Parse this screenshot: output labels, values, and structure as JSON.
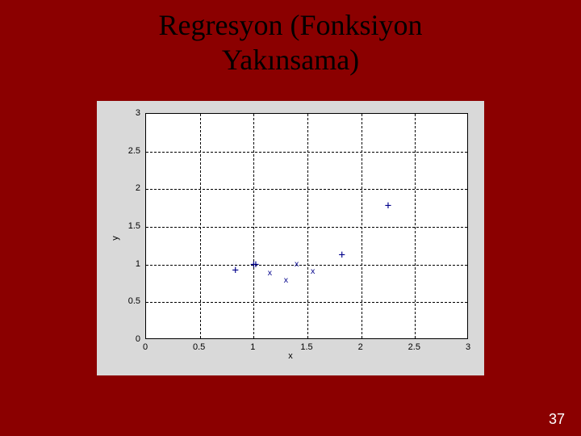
{
  "title_line1": "Regresyon (Fonksiyon",
  "title_line2": "Yakınsama)",
  "page_number": "37",
  "background_color": "#8b0000",
  "chart": {
    "type": "scatter",
    "outer_bg": "#d9d9d9",
    "plot_bg": "#ffffff",
    "grid_color": "#000000",
    "grid_style": "dashed",
    "xlim": [
      0,
      3
    ],
    "ylim": [
      0,
      3
    ],
    "xtick_step": 0.5,
    "ytick_step": 0.5,
    "xticks": [
      "0",
      "0.5",
      "1",
      "1.5",
      "2",
      "2.5",
      "3"
    ],
    "yticks": [
      "0",
      "0.5",
      "1",
      "1.5",
      "2",
      "2.5",
      "3"
    ],
    "xlabel": "x",
    "ylabel": "y",
    "axis_fontsize": 11,
    "marker_color": "#00008b",
    "plus_size": 14,
    "x_size": 10,
    "series_plus": [
      {
        "x": 0.83,
        "y": 0.92
      },
      {
        "x": 1.02,
        "y": 1.0
      },
      {
        "x": 1.0,
        "y": 1.0
      },
      {
        "x": 1.82,
        "y": 1.12
      },
      {
        "x": 2.25,
        "y": 1.78
      }
    ],
    "series_x": [
      {
        "x": 1.15,
        "y": 0.88
      },
      {
        "x": 1.3,
        "y": 0.78
      },
      {
        "x": 1.55,
        "y": 0.9
      },
      {
        "x": 1.4,
        "y": 1.0
      }
    ]
  }
}
